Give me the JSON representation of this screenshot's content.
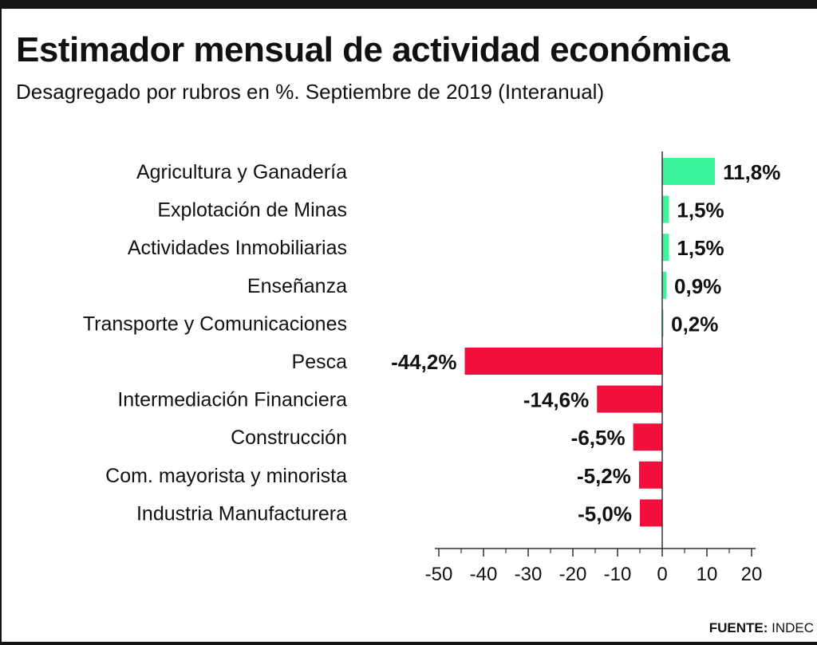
{
  "header": {
    "title": "Estimador mensual de actividad económica",
    "subtitle": "Desagregado por rubros en %. Septiembre de 2019 (Interanual)"
  },
  "source": {
    "label": "FUENTE:",
    "value": "INDEC"
  },
  "colors": {
    "positive": "#3cf59a",
    "negative": "#f20f3c",
    "axis": "#333333",
    "text": "#111111"
  },
  "chart_data": {
    "type": "bar",
    "orientation": "horizontal",
    "categories": [
      "Agricultura y Ganadería",
      "Explotación de Minas",
      "Actividades Inmobiliarias",
      "Enseñanza",
      "Transporte y Comunicaciones",
      "Pesca",
      "Intermediación Financiera",
      "Construcción",
      "Com. mayorista y minorista",
      "Industria Manufacturera"
    ],
    "values": [
      11.8,
      1.5,
      1.5,
      0.9,
      0.2,
      -44.2,
      -14.6,
      -6.5,
      -5.2,
      -5.0
    ],
    "value_labels": [
      "11,8%",
      "1,5%",
      "1,5%",
      "0,9%",
      "0,2%",
      "-44,2%",
      "-14,6%",
      "-6,5%",
      "-5,2%",
      "-5,0%"
    ],
    "xlim": [
      -50,
      20
    ],
    "xticks": [
      -50,
      -40,
      -30,
      -20,
      -10,
      0,
      10,
      20
    ],
    "xtick_labels": [
      "-50",
      "-40",
      "-30",
      "-20",
      "-10",
      "0",
      "10",
      "20"
    ],
    "grid": false,
    "legend": "none"
  }
}
